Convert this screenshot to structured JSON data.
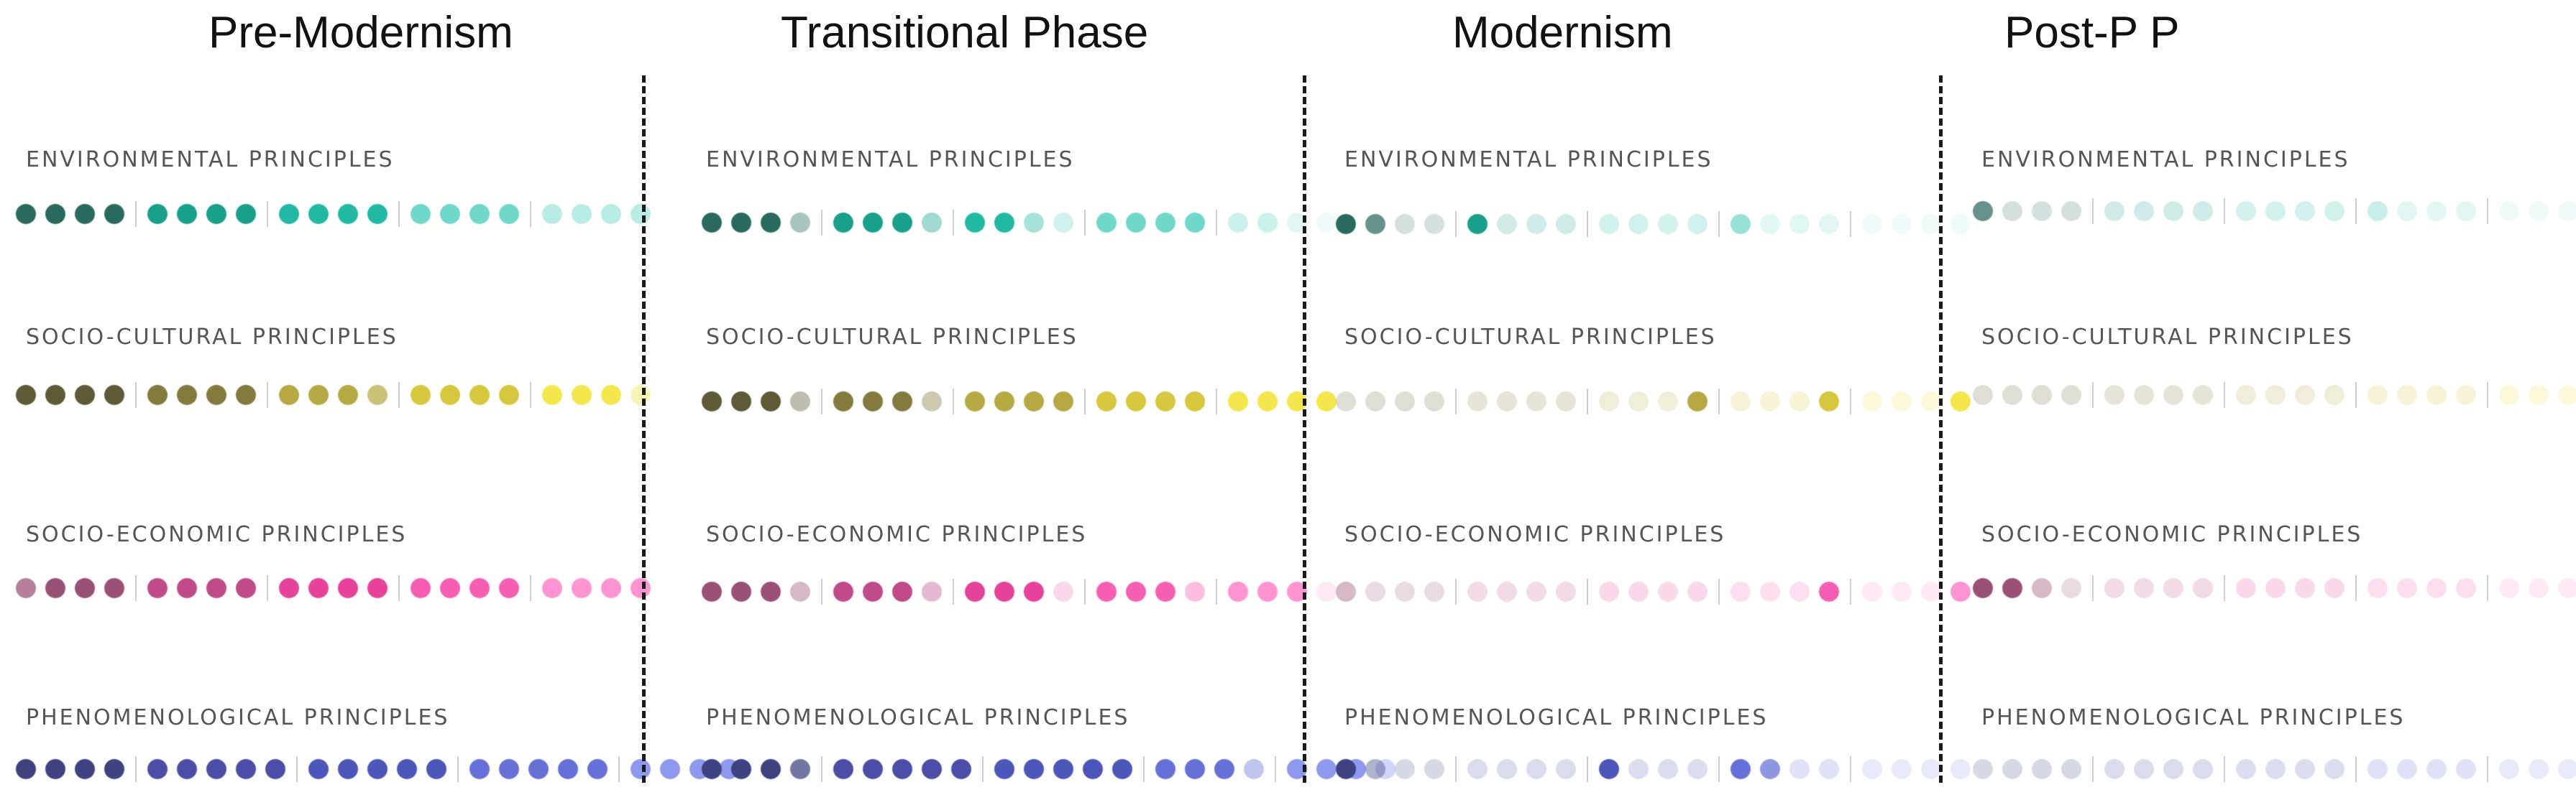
{
  "colors": {
    "environmental": [
      "#2a6a5e",
      "#18a08c",
      "#22b9a4",
      "#6fd8cb",
      "#b8ece4"
    ],
    "socio_cultural": [
      "#5e5a36",
      "#847a3e",
      "#b6a842",
      "#d6c73e",
      "#f5e64e"
    ],
    "socio_economic": [
      "#9a5076",
      "#c04a8a",
      "#e6429a",
      "#f65eb2",
      "#ff94d2"
    ],
    "phenomenological": [
      "#3e4280",
      "#4a4ea6",
      "#4c55b8",
      "#6670d6",
      "#8e98ee"
    ],
    "faded_levels": [
      1,
      0.72,
      0.4,
      0.2
    ]
  },
  "columns": [
    {
      "title": "Pre-Modernism",
      "sections": [
        {
          "label": "ENVIRONMENTAL PRINCIPLES",
          "palette": "environmental",
          "groups": [
            [
              1,
              1,
              1,
              1
            ],
            [
              1,
              1,
              1,
              1
            ],
            [
              1,
              1,
              1,
              1
            ],
            [
              1,
              1,
              1,
              1
            ],
            [
              1,
              1,
              1,
              1
            ]
          ]
        },
        {
          "label": "SOCIO-CULTURAL PRINCIPLES",
          "palette": "socio_cultural",
          "groups": [
            [
              1,
              1,
              1,
              1
            ],
            [
              1,
              1,
              1,
              1
            ],
            [
              1,
              1,
              1,
              0.72
            ],
            [
              1,
              1,
              1,
              1
            ],
            [
              1,
              1,
              1,
              0.4
            ]
          ]
        },
        {
          "label": "SOCIO-ECONOMIC PRINCIPLES",
          "palette": "socio_economic",
          "groups": [
            [
              0.72,
              1,
              1,
              1
            ],
            [
              1,
              1,
              1,
              1
            ],
            [
              1,
              1,
              1,
              1
            ],
            [
              1,
              1,
              1,
              1
            ],
            [
              1,
              1,
              1,
              1
            ]
          ]
        },
        {
          "label": "PHENOMENOLOGICAL PRINCIPLES",
          "palette": "phenomenological",
          "groups": [
            [
              1,
              1,
              1,
              1
            ],
            [
              1,
              1,
              1,
              1,
              1
            ],
            [
              1,
              1,
              1,
              1,
              1
            ],
            [
              1,
              1,
              1,
              1,
              1
            ],
            [
              1,
              1,
              1,
              1
            ]
          ]
        }
      ]
    },
    {
      "title": "Transitional Phase",
      "sections": [
        {
          "label": "ENVIRONMENTAL PRINCIPLES",
          "palette": "environmental",
          "groups": [
            [
              1,
              1,
              1,
              0.4
            ],
            [
              1,
              1,
              1,
              0.4
            ],
            [
              1,
              1,
              0.4,
              0.2
            ],
            [
              1,
              1,
              1,
              1
            ],
            [
              0.72,
              0.72,
              0.4,
              0.2
            ]
          ]
        },
        {
          "label": "SOCIO-CULTURAL PRINCIPLES",
          "palette": "socio_cultural",
          "groups": [
            [
              1,
              1,
              1,
              0.4
            ],
            [
              1,
              1,
              1,
              0.4
            ],
            [
              1,
              1,
              1,
              1
            ],
            [
              1,
              1,
              1,
              1
            ],
            [
              1,
              1,
              1,
              1
            ]
          ]
        },
        {
          "label": "SOCIO-ECONOMIC PRINCIPLES",
          "palette": "socio_economic",
          "groups": [
            [
              1,
              1,
              1,
              0.4
            ],
            [
              1,
              1,
              1,
              0.4
            ],
            [
              1,
              1,
              1,
              0.2
            ],
            [
              1,
              1,
              1,
              0.4
            ],
            [
              1,
              1,
              1,
              0.2
            ]
          ]
        },
        {
          "label": "PHENOMENOLOGICAL PRINCIPLES",
          "palette": "phenomenological",
          "groups": [
            [
              1,
              1,
              1,
              0.72
            ],
            [
              1,
              1,
              1,
              1,
              1
            ],
            [
              1,
              1,
              1,
              1,
              1
            ],
            [
              1,
              1,
              1,
              0.4
            ],
            [
              1,
              1,
              1,
              0.4
            ]
          ]
        }
      ]
    },
    {
      "title": "Modernism",
      "sections": [
        {
          "label": "ENVIRONMENTAL PRINCIPLES",
          "palette": "environmental",
          "groups": [
            [
              1,
              0.72,
              0.2,
              0.2
            ],
            [
              1,
              0.2,
              0.2,
              0.2
            ],
            [
              0.2,
              0.2,
              0.2,
              0.2
            ],
            [
              0.72,
              0.2,
              0.2,
              0.2
            ],
            [
              0.2,
              0.2,
              0.2,
              0.2
            ]
          ]
        },
        {
          "label": "SOCIO-CULTURAL PRINCIPLES",
          "palette": "socio_cultural",
          "groups": [
            [
              0.2,
              0.2,
              0.2,
              0.2
            ],
            [
              0.2,
              0.2,
              0.2,
              0.2
            ],
            [
              0.2,
              0.2,
              0.2,
              1
            ],
            [
              0.2,
              0.2,
              0.2,
              1
            ],
            [
              0.2,
              0.2,
              0.2,
              1
            ]
          ]
        },
        {
          "label": "SOCIO-ECONOMIC PRINCIPLES",
          "palette": "socio_economic",
          "groups": [
            [
              0.4,
              0.2,
              0.2,
              0.2
            ],
            [
              0.2,
              0.2,
              0.2,
              0.2
            ],
            [
              0.2,
              0.2,
              0.2,
              0.2
            ],
            [
              0.2,
              0.2,
              0.2,
              1
            ],
            [
              0.2,
              0.2,
              0.2,
              1
            ]
          ]
        },
        {
          "label": "PHENOMENOLOGICAL PRINCIPLES",
          "palette": "phenomenological",
          "groups": [
            [
              1,
              0.4,
              0.2,
              0.2
            ],
            [
              0.2,
              0.2,
              0.2,
              0.2
            ],
            [
              1,
              0.2,
              0.2,
              0.2
            ],
            [
              1,
              0.72,
              0.2,
              0.2
            ],
            [
              0.2,
              0.2,
              0.2,
              0.2
            ]
          ]
        }
      ]
    },
    {
      "title": "Post-P P",
      "sections": [
        {
          "label": "ENVIRONMENTAL PRINCIPLES",
          "palette": "environmental",
          "groups": [
            [
              0.72,
              0.2,
              0.2,
              0.2
            ],
            [
              0.2,
              0.2,
              0.2,
              0.2
            ],
            [
              0.2,
              0.2,
              0.2,
              0.2
            ],
            [
              0.4,
              0.2,
              0.2,
              0.2
            ],
            [
              0.2,
              0.2,
              0.2,
              0.2
            ]
          ]
        },
        {
          "label": "SOCIO-CULTURAL PRINCIPLES",
          "palette": "socio_cultural",
          "groups": [
            [
              0.2,
              0.2,
              0.2,
              0.2
            ],
            [
              0.2,
              0.2,
              0.2,
              0.2
            ],
            [
              0.2,
              0.2,
              0.2,
              0.2
            ],
            [
              0.2,
              0.2,
              0.2,
              0.2
            ],
            [
              0.2,
              0.2,
              0.2,
              0.2
            ]
          ]
        },
        {
          "label": "SOCIO-ECONOMIC PRINCIPLES",
          "palette": "socio_economic",
          "groups": [
            [
              1,
              1,
              0.4,
              0.2
            ],
            [
              0.2,
              0.2,
              0.2,
              0.2
            ],
            [
              0.2,
              0.2,
              0.2,
              0.2
            ],
            [
              0.2,
              0.2,
              0.2,
              0.2
            ],
            [
              0.2,
              0.2,
              0.2,
              0.2
            ]
          ]
        },
        {
          "label": "PHENOMENOLOGICAL PRINCIPLES",
          "palette": "phenomenological",
          "groups": [
            [
              0.2,
              0.2,
              0.2,
              0.2
            ],
            [
              0.2,
              0.2,
              0.2,
              0.2
            ],
            [
              0.2,
              0.2,
              0.2,
              0.2
            ],
            [
              0.2,
              0.2,
              0.2,
              0.2
            ],
            [
              0.2,
              0.2,
              0.2,
              0.2
            ]
          ]
        }
      ]
    }
  ]
}
